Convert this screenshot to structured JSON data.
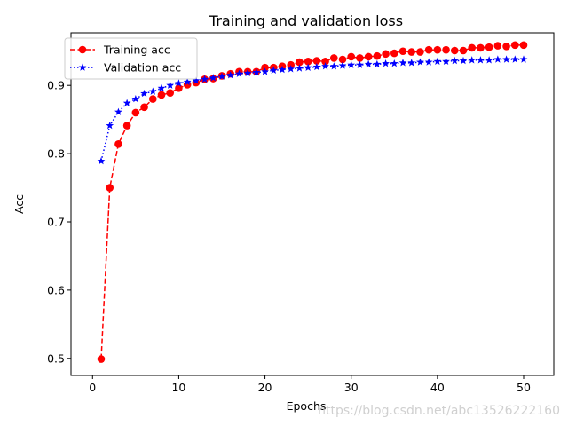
{
  "chart_data": {
    "type": "line",
    "title": "Training and validation loss",
    "xlabel": "Epochs",
    "ylabel": "Acc",
    "xlim": [
      -2.5,
      53.5
    ],
    "ylim": [
      0.475,
      0.977
    ],
    "xticks": [
      0,
      10,
      20,
      30,
      40,
      50
    ],
    "yticks": [
      0.5,
      0.6,
      0.7,
      0.8,
      0.9
    ],
    "legend_position": "top-left",
    "grid": false,
    "x": [
      1,
      2,
      3,
      4,
      5,
      6,
      7,
      8,
      9,
      10,
      11,
      12,
      13,
      14,
      15,
      16,
      17,
      18,
      19,
      20,
      21,
      22,
      23,
      24,
      25,
      26,
      27,
      28,
      29,
      30,
      31,
      32,
      33,
      34,
      35,
      36,
      37,
      38,
      39,
      40,
      41,
      42,
      43,
      44,
      45,
      46,
      47,
      48,
      49,
      50
    ],
    "series": [
      {
        "name": "Training acc",
        "color": "#ff0000",
        "line_style": "dashed",
        "marker": "circle",
        "values": [
          0.499,
          0.75,
          0.814,
          0.841,
          0.86,
          0.868,
          0.88,
          0.886,
          0.889,
          0.896,
          0.901,
          0.904,
          0.909,
          0.91,
          0.914,
          0.917,
          0.92,
          0.92,
          0.92,
          0.926,
          0.926,
          0.928,
          0.93,
          0.934,
          0.935,
          0.936,
          0.935,
          0.94,
          0.938,
          0.942,
          0.94,
          0.942,
          0.943,
          0.946,
          0.947,
          0.95,
          0.949,
          0.949,
          0.952,
          0.952,
          0.952,
          0.951,
          0.951,
          0.955,
          0.955,
          0.956,
          0.958,
          0.957,
          0.959,
          0.959
        ]
      },
      {
        "name": "Validation acc",
        "color": "#0000ff",
        "line_style": "dotted",
        "marker": "star",
        "values": [
          0.789,
          0.841,
          0.861,
          0.874,
          0.88,
          0.888,
          0.891,
          0.896,
          0.9,
          0.903,
          0.905,
          0.907,
          0.909,
          0.911,
          0.913,
          0.915,
          0.917,
          0.918,
          0.919,
          0.92,
          0.922,
          0.923,
          0.924,
          0.925,
          0.926,
          0.927,
          0.928,
          0.928,
          0.929,
          0.93,
          0.93,
          0.931,
          0.931,
          0.932,
          0.932,
          0.933,
          0.933,
          0.934,
          0.934,
          0.935,
          0.935,
          0.936,
          0.936,
          0.937,
          0.937,
          0.937,
          0.938,
          0.938,
          0.938,
          0.938
        ]
      }
    ]
  },
  "watermark": "https://blog.csdn.net/abc13526222160"
}
